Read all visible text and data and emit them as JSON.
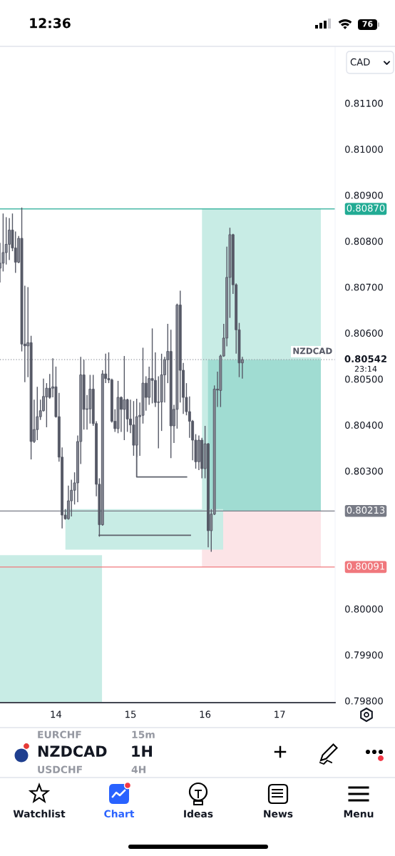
{
  "chart_data": {
    "type": "candlestick",
    "title": "NZDCAD",
    "subtitle": "1H",
    "ylabel": "CAD",
    "xlim": [
      13.25,
      17.744
    ],
    "ylim": [
      0.79796,
      0.81222
    ],
    "xticks": [
      14,
      15,
      16,
      17
    ],
    "yticks": [
      {
        "value": 0.798,
        "label": "0.79800"
      },
      {
        "value": 0.799,
        "label": "0.79900"
      },
      {
        "value": 0.8,
        "label": "0.80000"
      },
      {
        "value": 0.803,
        "label": "0.80300"
      },
      {
        "value": 0.804,
        "label": "0.80400"
      },
      {
        "value": 0.805,
        "label": "0.80500"
      },
      {
        "value": 0.806,
        "label": "0.80600"
      },
      {
        "value": 0.807,
        "label": "0.80700"
      },
      {
        "value": 0.808,
        "label": "0.80800"
      },
      {
        "value": 0.809,
        "label": "0.80900"
      },
      {
        "value": 0.81,
        "label": "0.81000"
      },
      {
        "value": 0.811,
        "label": "0.81100"
      }
    ],
    "series": [
      {
        "type": "line",
        "color": "#c8ece5",
        "x": [
          15.959,
          17.553
        ],
        "values": [
          null,
          null
        ],
        "lower": [
          0.80213,
          0.80213
        ],
        "upper": [
          0.8087,
          0.8087
        ]
      },
      {
        "type": "line",
        "color": "#a0dcd2",
        "x": [
          16.039,
          17.553
        ],
        "values": [
          null,
          null
        ],
        "lower": [
          0.80213,
          0.80213
        ],
        "upper": [
          0.80542,
          0.80542
        ]
      },
      {
        "type": "line",
        "color": "#fce4e7",
        "x": [
          15.959,
          17.553
        ],
        "values": [
          null,
          null
        ],
        "lower": [
          0.80091,
          0.80091
        ],
        "upper": [
          0.80213,
          0.80213
        ]
      },
      {
        "type": "line",
        "color": "#c8ece5",
        "x": [
          14.127,
          16.243
        ],
        "values": [
          null,
          null
        ],
        "lower": [
          0.80129,
          0.80129
        ],
        "upper": [
          0.80217,
          0.80217
        ]
      },
      {
        "type": "line",
        "color": "#c8ece5",
        "x": [
          13.25,
          14.618
        ],
        "values": [
          null,
          null
        ],
        "lower": [
          0.79796,
          0.79796
        ],
        "upper": [
          0.80117,
          0.80117
        ]
      },
      {
        "type": "line",
        "color": "#5d606b",
        "x": [
          15.083,
          15.083,
          15.752
        ],
        "values": [
          0.80356,
          0.80287,
          0.80287
        ]
      },
      {
        "type": "line",
        "color": "#5d606b",
        "x": [
          14.579,
          15.803
        ],
        "values": [
          0.8016,
          0.8016
        ]
      },
      {
        "name": "NZDCAD",
        "color": "#565966",
        "colors": [
          "#858893",
          "#858893",
          "#858893",
          "#858893",
          "#565966",
          "#565966",
          "#858893",
          "#565966",
          "#565966",
          "#858893",
          "#565966",
          "#858893",
          "#858893",
          "#858893",
          "#858893",
          "#858893",
          "#565966",
          "#858893",
          "#565966",
          "#565966",
          "#565966",
          "#565966",
          "#858893",
          "#858893",
          "#858893",
          "#858893",
          "#858893",
          "#565966",
          "#858893",
          "#858893",
          "#565966",
          "#565966",
          "#565966",
          "#858893",
          "#565966",
          "#565966",
          "#565966",
          "#565966",
          "#858893",
          "#565966",
          "#858893",
          "#565966",
          "#565966",
          "#565966",
          "#858893",
          "#858893",
          "#858893",
          "#565966",
          "#858893",
          "#565966",
          "#565966",
          "#858893",
          "#858893",
          "#858893",
          "#858893",
          "#565966",
          "#858893",
          "#858893",
          "#565966",
          "#565966",
          "#565966",
          "#565966",
          "#565966",
          "#565966",
          "#858893",
          "#565966",
          "#858893",
          "#565966",
          "#858893",
          "#858893",
          "#565966",
          "#858893",
          "#858893",
          "#858893",
          "#858893",
          "#565966",
          "#565966",
          "#565966",
          "#858893"
        ],
        "x": [
          13.25,
          13.292,
          13.333,
          13.375,
          13.417,
          13.458,
          13.5,
          13.542,
          13.583,
          13.625,
          13.667,
          13.708,
          13.75,
          13.792,
          13.833,
          13.875,
          13.917,
          13.958,
          14.0,
          14.042,
          14.083,
          14.125,
          14.167,
          14.208,
          14.25,
          14.292,
          14.333,
          14.375,
          14.417,
          14.458,
          14.5,
          14.542,
          14.583,
          14.625,
          14.667,
          14.708,
          14.75,
          14.792,
          14.833,
          14.875,
          14.917,
          14.958,
          15.0,
          15.042,
          15.083,
          15.125,
          15.167,
          15.208,
          15.25,
          15.292,
          15.333,
          15.375,
          15.417,
          15.458,
          15.5,
          15.542,
          15.583,
          15.625,
          15.667,
          15.708,
          15.75,
          15.792,
          15.833,
          15.875,
          15.917,
          15.958,
          16.0,
          16.042,
          16.083,
          16.125,
          16.167,
          16.208,
          16.25,
          16.292,
          16.333,
          16.375,
          16.417,
          16.458,
          16.5
        ],
        "ohlc": [
          [
            0.80741,
            0.80796,
            0.8071,
            0.80752
          ],
          [
            0.80752,
            0.8086,
            0.80734,
            0.80775
          ],
          [
            0.80775,
            0.80852,
            0.80749,
            0.80793
          ],
          [
            0.80793,
            0.8085,
            0.80759,
            0.80824
          ],
          [
            0.80824,
            0.8086,
            0.80778,
            0.80785
          ],
          [
            0.80785,
            0.80821,
            0.80731,
            0.80754
          ],
          [
            0.80754,
            0.80811,
            0.80752,
            0.80806
          ],
          [
            0.80806,
            0.80873,
            0.8056,
            0.80576
          ],
          [
            0.80576,
            0.80703,
            0.80493,
            0.80572
          ],
          [
            0.80572,
            0.807,
            0.80504,
            0.80579
          ],
          [
            0.80579,
            0.80594,
            0.80325,
            0.80364
          ],
          [
            0.80364,
            0.80455,
            0.80361,
            0.8039
          ],
          [
            0.8039,
            0.80483,
            0.80367,
            0.80418
          ],
          [
            0.80418,
            0.80455,
            0.80411,
            0.80431
          ],
          [
            0.80431,
            0.80501,
            0.80429,
            0.80462
          ],
          [
            0.80461,
            0.80491,
            0.80395,
            0.8048
          ],
          [
            0.8048,
            0.80511,
            0.80457,
            0.8046
          ],
          [
            0.8048,
            0.80545,
            0.8046,
            0.80483
          ],
          [
            0.80483,
            0.80527,
            0.80416,
            0.80418
          ],
          [
            0.80418,
            0.8047,
            0.8032,
            0.8033
          ],
          [
            0.8033,
            0.80351,
            0.80175,
            0.80204
          ],
          [
            0.80204,
            0.80217,
            0.80194,
            0.80196
          ],
          [
            0.80196,
            0.80268,
            0.80194,
            0.80235
          ],
          [
            0.80235,
            0.80281,
            0.80201,
            0.80258
          ],
          [
            0.80258,
            0.80297,
            0.80227,
            0.80274
          ],
          [
            0.80274,
            0.80377,
            0.80232,
            0.80364
          ],
          [
            0.80364,
            0.80548,
            0.80315,
            0.80509
          ],
          [
            0.80509,
            0.80542,
            0.8039,
            0.80434
          ],
          [
            0.80434,
            0.80465,
            0.8039,
            0.80435
          ],
          [
            0.80435,
            0.80509,
            0.80403,
            0.80478
          ],
          [
            0.80478,
            0.80509,
            0.80398,
            0.80403
          ],
          [
            0.80403,
            0.80408,
            0.80245,
            0.80271
          ],
          [
            0.80271,
            0.80284,
            0.80157,
            0.80183
          ],
          [
            0.80183,
            0.80519,
            0.80181,
            0.80511
          ],
          [
            0.80511,
            0.80555,
            0.80491,
            0.80501
          ],
          [
            0.80501,
            0.80558,
            0.80491,
            0.80498
          ],
          [
            0.80498,
            0.80501,
            0.80405,
            0.80408
          ],
          [
            0.80408,
            0.80434,
            0.80385,
            0.80392
          ],
          [
            0.80392,
            0.80496,
            0.80382,
            0.8046
          ],
          [
            0.8046,
            0.80462,
            0.80385,
            0.80434
          ],
          [
            0.80434,
            0.8055,
            0.80367,
            0.80455
          ],
          [
            0.80455,
            0.80457,
            0.80385,
            0.80413
          ],
          [
            0.80413,
            0.80455,
            0.80382,
            0.804
          ],
          [
            0.804,
            0.80452,
            0.80333,
            0.80356
          ],
          [
            0.80356,
            0.80457,
            0.8033,
            0.80418
          ],
          [
            0.80418,
            0.80449,
            0.80333,
            0.80421
          ],
          [
            0.80421,
            0.80568,
            0.80403,
            0.80491
          ],
          [
            0.80491,
            0.80506,
            0.80431,
            0.8046
          ],
          [
            0.8046,
            0.80527,
            0.80444,
            0.80501
          ],
          [
            0.80501,
            0.8061,
            0.80447,
            0.80497
          ],
          [
            0.80497,
            0.80558,
            0.80439,
            0.80449
          ],
          [
            0.80449,
            0.80506,
            0.80349,
            0.8045
          ],
          [
            0.8045,
            0.80555,
            0.80387,
            0.80509
          ],
          [
            0.80509,
            0.80548,
            0.80449,
            0.80542
          ],
          [
            0.80542,
            0.8062,
            0.80491,
            0.8056
          ],
          [
            0.8056,
            0.80607,
            0.80328,
            0.80398
          ],
          [
            0.80398,
            0.80444,
            0.80361,
            0.80434
          ],
          [
            0.80434,
            0.80664,
            0.80392,
            0.80661
          ],
          [
            0.80661,
            0.80692,
            0.80449,
            0.80519
          ],
          [
            0.80519,
            0.80535,
            0.80424,
            0.8046
          ],
          [
            0.8046,
            0.80491,
            0.80421,
            0.80429
          ],
          [
            0.80429,
            0.80462,
            0.80372,
            0.80408
          ],
          [
            0.80408,
            0.80411,
            0.80323,
            0.80367
          ],
          [
            0.80367,
            0.8038,
            0.80305,
            0.8032
          ],
          [
            0.8032,
            0.80377,
            0.80302,
            0.80367
          ],
          [
            0.80367,
            0.80372,
            0.80284,
            0.80305
          ],
          [
            0.80305,
            0.80398,
            0.80284,
            0.80359
          ],
          [
            0.80359,
            0.80361,
            0.80134,
            0.8017
          ],
          [
            0.8017,
            0.80217,
            0.80124,
            0.80206
          ],
          [
            0.80206,
            0.80486,
            0.80204,
            0.80478
          ],
          [
            0.80478,
            0.80516,
            0.80439,
            0.80476
          ],
          [
            0.80475,
            0.80553,
            0.80439,
            0.8055
          ],
          [
            0.8055,
            0.8062,
            0.80548,
            0.80589
          ],
          [
            0.80589,
            0.80788,
            0.80571,
            0.80721
          ],
          [
            0.80721,
            0.80829,
            0.80633,
            0.80814
          ],
          [
            0.80814,
            0.80816,
            0.80685,
            0.80705
          ],
          [
            0.80705,
            0.80708,
            0.80555,
            0.80607
          ],
          [
            0.80607,
            0.80622,
            0.80504,
            0.80535
          ],
          [
            0.80535,
            0.80548,
            0.80501,
            0.80542
          ]
        ]
      }
    ],
    "ref_lines": [
      {
        "axis": "y",
        "value": 0.8087,
        "label": "0.80870",
        "color": "#22ab94"
      },
      {
        "axis": "y",
        "value": 0.80542,
        "label": "0.80542",
        "color": "#9598a1",
        "line_style": "dotted"
      },
      {
        "axis": "y",
        "value": 0.80213,
        "label": "0.80213",
        "color": "#787b86"
      },
      {
        "axis": "y",
        "value": 0.80091,
        "label": "0.80091",
        "color": "#f0787d"
      }
    ],
    "annotations": [
      "12:36",
      "76",
      "23:14",
      "EURCHF",
      "15m",
      "USDCHF",
      "4H",
      "Watchlist",
      "Chart",
      "Ideas",
      "News",
      "Menu"
    ]
  }
}
